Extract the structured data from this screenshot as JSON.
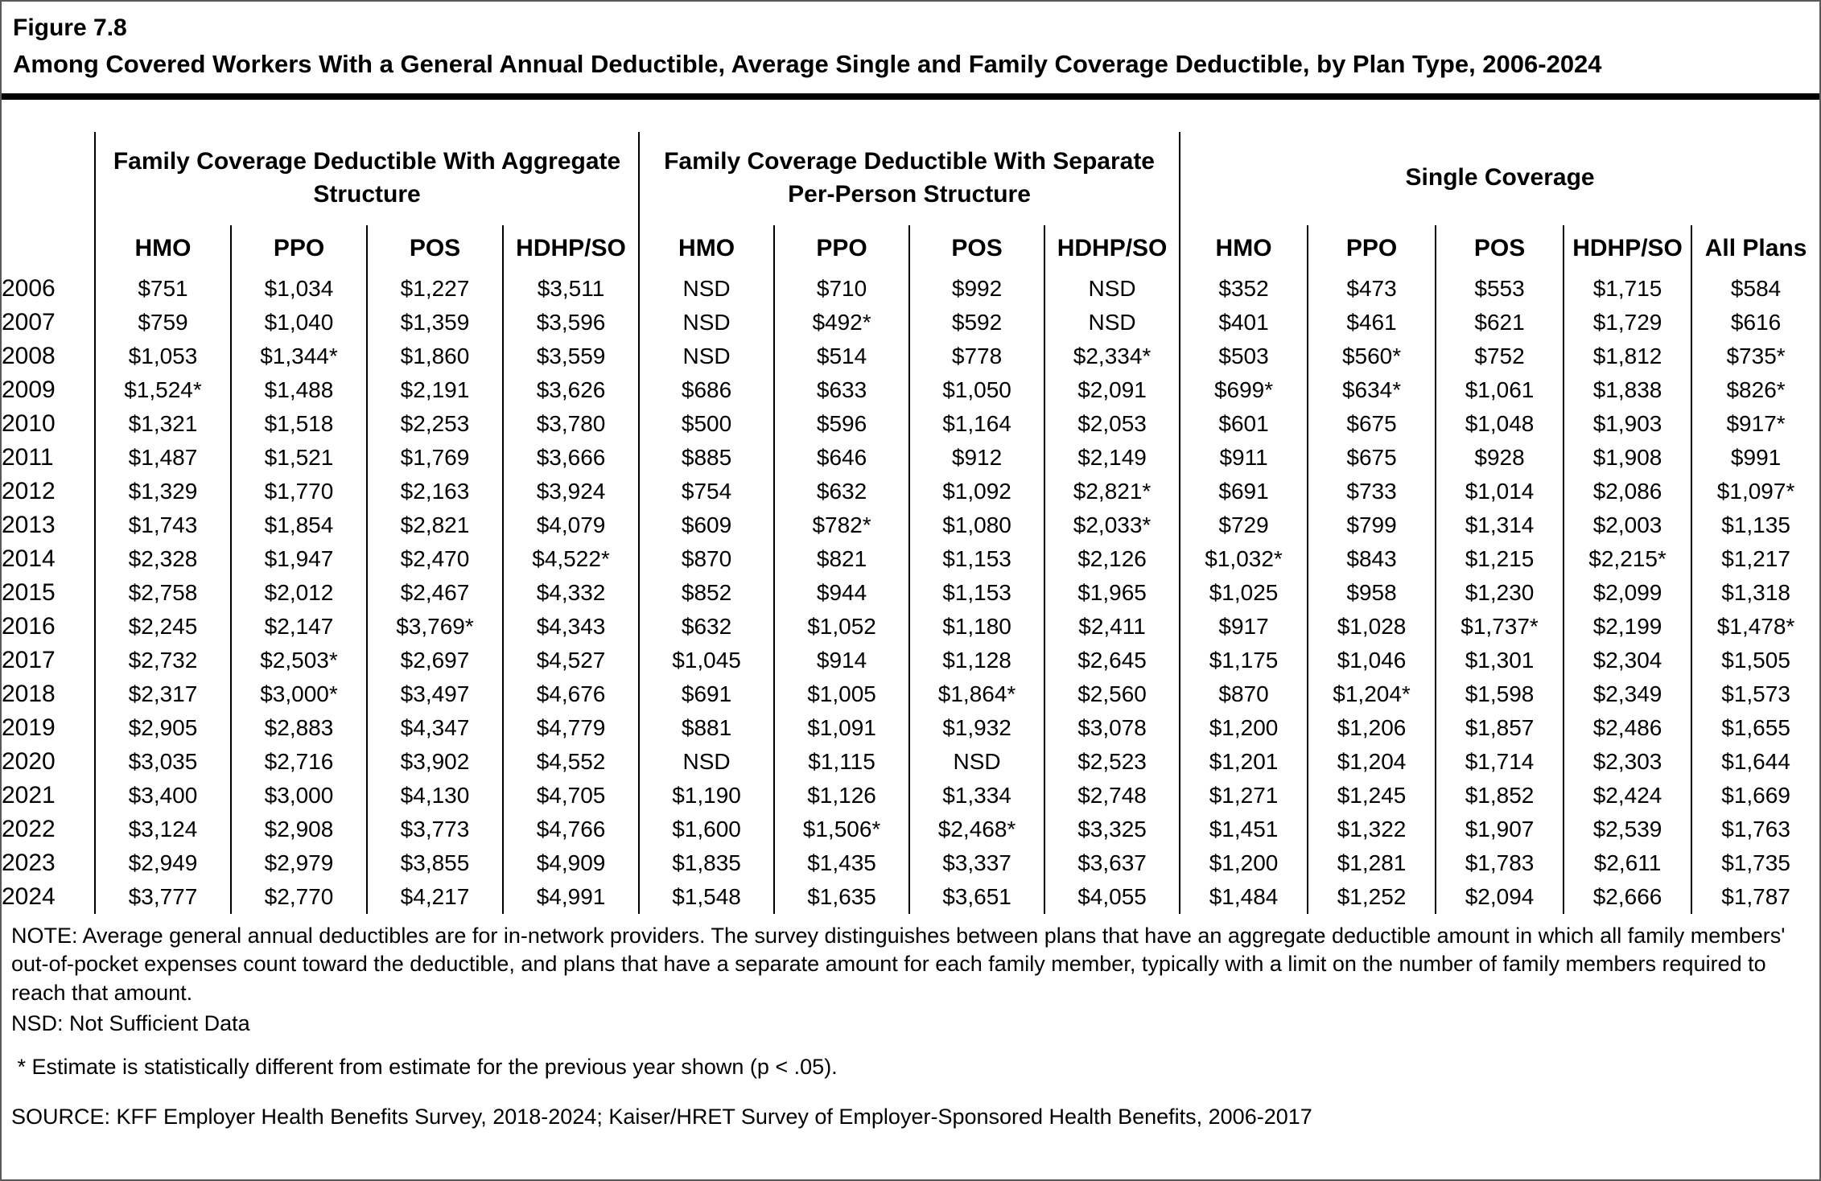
{
  "figure": {
    "label": "Figure 7.8",
    "title": "Among Covered Workers With a General Annual Deductible, Average Single and Family Coverage Deductible, by Plan Type, 2006-2024"
  },
  "chart_data": {
    "type": "table",
    "title": "Among Covered Workers With a General Annual Deductible, Average Single and Family Coverage Deductible, by Plan Type, 2006-2024",
    "groups": [
      {
        "label": "Family Coverage Deductible With Aggregate Structure",
        "columns": [
          "HMO",
          "PPO",
          "POS",
          "HDHP/SO"
        ]
      },
      {
        "label": "Family Coverage Deductible With Separate Per-Person Structure",
        "columns": [
          "HMO",
          "PPO",
          "POS",
          "HDHP/SO"
        ]
      },
      {
        "label": "Single Coverage",
        "columns": [
          "HMO",
          "PPO",
          "POS",
          "HDHP/SO",
          "All Plans"
        ]
      }
    ],
    "rows": [
      {
        "year": "2006",
        "values": [
          "$751",
          "$1,034",
          "$1,227",
          "$3,511",
          "NSD",
          "$710",
          "$992",
          "NSD",
          "$352",
          "$473",
          "$553",
          "$1,715",
          "$584"
        ]
      },
      {
        "year": "2007",
        "values": [
          "$759",
          "$1,040",
          "$1,359",
          "$3,596",
          "NSD",
          "$492*",
          "$592",
          "NSD",
          "$401",
          "$461",
          "$621",
          "$1,729",
          "$616"
        ]
      },
      {
        "year": "2008",
        "values": [
          "$1,053",
          "$1,344*",
          "$1,860",
          "$3,559",
          "NSD",
          "$514",
          "$778",
          "$2,334*",
          "$503",
          "$560*",
          "$752",
          "$1,812",
          "$735*"
        ]
      },
      {
        "year": "2009",
        "values": [
          "$1,524*",
          "$1,488",
          "$2,191",
          "$3,626",
          "$686",
          "$633",
          "$1,050",
          "$2,091",
          "$699*",
          "$634*",
          "$1,061",
          "$1,838",
          "$826*"
        ]
      },
      {
        "year": "2010",
        "values": [
          "$1,321",
          "$1,518",
          "$2,253",
          "$3,780",
          "$500",
          "$596",
          "$1,164",
          "$2,053",
          "$601",
          "$675",
          "$1,048",
          "$1,903",
          "$917*"
        ]
      },
      {
        "year": "2011",
        "values": [
          "$1,487",
          "$1,521",
          "$1,769",
          "$3,666",
          "$885",
          "$646",
          "$912",
          "$2,149",
          "$911",
          "$675",
          "$928",
          "$1,908",
          "$991"
        ]
      },
      {
        "year": "2012",
        "values": [
          "$1,329",
          "$1,770",
          "$2,163",
          "$3,924",
          "$754",
          "$632",
          "$1,092",
          "$2,821*",
          "$691",
          "$733",
          "$1,014",
          "$2,086",
          "$1,097*"
        ]
      },
      {
        "year": "2013",
        "values": [
          "$1,743",
          "$1,854",
          "$2,821",
          "$4,079",
          "$609",
          "$782*",
          "$1,080",
          "$2,033*",
          "$729",
          "$799",
          "$1,314",
          "$2,003",
          "$1,135"
        ]
      },
      {
        "year": "2014",
        "values": [
          "$2,328",
          "$1,947",
          "$2,470",
          "$4,522*",
          "$870",
          "$821",
          "$1,153",
          "$2,126",
          "$1,032*",
          "$843",
          "$1,215",
          "$2,215*",
          "$1,217"
        ]
      },
      {
        "year": "2015",
        "values": [
          "$2,758",
          "$2,012",
          "$2,467",
          "$4,332",
          "$852",
          "$944",
          "$1,153",
          "$1,965",
          "$1,025",
          "$958",
          "$1,230",
          "$2,099",
          "$1,318"
        ]
      },
      {
        "year": "2016",
        "values": [
          "$2,245",
          "$2,147",
          "$3,769*",
          "$4,343",
          "$632",
          "$1,052",
          "$1,180",
          "$2,411",
          "$917",
          "$1,028",
          "$1,737*",
          "$2,199",
          "$1,478*"
        ]
      },
      {
        "year": "2017",
        "values": [
          "$2,732",
          "$2,503*",
          "$2,697",
          "$4,527",
          "$1,045",
          "$914",
          "$1,128",
          "$2,645",
          "$1,175",
          "$1,046",
          "$1,301",
          "$2,304",
          "$1,505"
        ]
      },
      {
        "year": "2018",
        "values": [
          "$2,317",
          "$3,000*",
          "$3,497",
          "$4,676",
          "$691",
          "$1,005",
          "$1,864*",
          "$2,560",
          "$870",
          "$1,204*",
          "$1,598",
          "$2,349",
          "$1,573"
        ]
      },
      {
        "year": "2019",
        "values": [
          "$2,905",
          "$2,883",
          "$4,347",
          "$4,779",
          "$881",
          "$1,091",
          "$1,932",
          "$3,078",
          "$1,200",
          "$1,206",
          "$1,857",
          "$2,486",
          "$1,655"
        ]
      },
      {
        "year": "2020",
        "values": [
          "$3,035",
          "$2,716",
          "$3,902",
          "$4,552",
          "NSD",
          "$1,115",
          "NSD",
          "$2,523",
          "$1,201",
          "$1,204",
          "$1,714",
          "$2,303",
          "$1,644"
        ]
      },
      {
        "year": "2021",
        "values": [
          "$3,400",
          "$3,000",
          "$4,130",
          "$4,705",
          "$1,190",
          "$1,126",
          "$1,334",
          "$2,748",
          "$1,271",
          "$1,245",
          "$1,852",
          "$2,424",
          "$1,669"
        ]
      },
      {
        "year": "2022",
        "values": [
          "$3,124",
          "$2,908",
          "$3,773",
          "$4,766",
          "$1,600",
          "$1,506*",
          "$2,468*",
          "$3,325",
          "$1,451",
          "$1,322",
          "$1,907",
          "$2,539",
          "$1,763"
        ]
      },
      {
        "year": "2023",
        "values": [
          "$2,949",
          "$2,979",
          "$3,855",
          "$4,909",
          "$1,835",
          "$1,435",
          "$3,337",
          "$3,637",
          "$1,200",
          "$1,281",
          "$1,783",
          "$2,611",
          "$1,735"
        ]
      },
      {
        "year": "2024",
        "values": [
          "$3,777",
          "$2,770",
          "$4,217",
          "$4,991",
          "$1,548",
          "$1,635",
          "$3,651",
          "$4,055",
          "$1,484",
          "$1,252",
          "$2,094",
          "$2,666",
          "$1,787"
        ]
      }
    ]
  },
  "notes": {
    "main": "NOTE: Average general annual deductibles are for in-network providers. The survey distinguishes between plans that have an aggregate deductible amount in which all family members' out-of-pocket expenses count toward the deductible, and plans that have a separate amount for each family member, typically with a limit on the number of family members required to reach that amount.",
    "nsd": "NSD: Not Sufficient Data",
    "asterisk": " * Estimate is statistically different from estimate for the previous year shown (p < .05).",
    "source": "SOURCE: KFF Employer Health Benefits Survey, 2018-2024; Kaiser/HRET Survey of Employer-Sponsored Health Benefits, 2006-2017"
  }
}
